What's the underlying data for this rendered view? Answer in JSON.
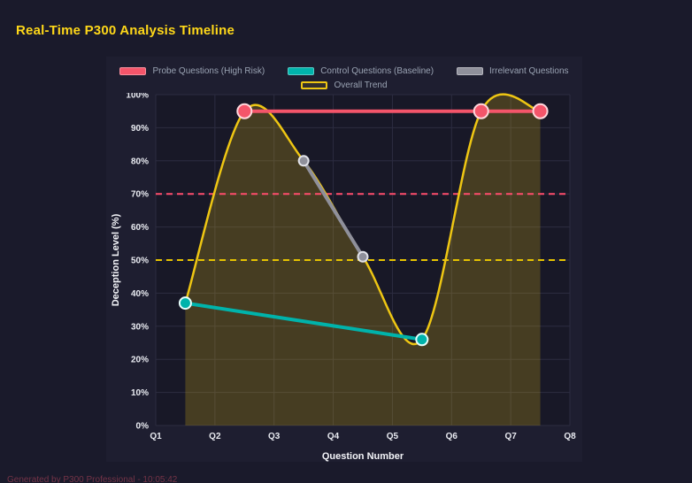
{
  "page": {
    "title": "Real-Time P300 Analysis Timeline",
    "footer": "Generated by P300 Professional - 10:05:42"
  },
  "chart_data": {
    "type": "line",
    "xlabel": "Question Number",
    "ylabel": "Deception Level (%)",
    "x_range": [
      1,
      8
    ],
    "x_ticks": [
      "Q1",
      "Q2",
      "Q3",
      "Q4",
      "Q5",
      "Q6",
      "Q7",
      "Q8"
    ],
    "ylim": [
      0,
      100
    ],
    "y_tick_step": 10,
    "y_ticks": [
      "0%",
      "10%",
      "20%",
      "30%",
      "40%",
      "50%",
      "60%",
      "70%",
      "80%",
      "90%",
      "100%"
    ],
    "grid": true,
    "legend_position": "top",
    "series": [
      {
        "name": "Probe Questions (High Risk)",
        "color": "#f4556a",
        "line_width": 4,
        "point_radius": 8,
        "point_border": "#ffd7dc",
        "legend_box": "solid",
        "x": [
          2.5,
          6.5,
          7.5
        ],
        "y": [
          95,
          95,
          95
        ]
      },
      {
        "name": "Control Questions (Baseline)",
        "color": "#00b3ab",
        "line_width": 4,
        "point_radius": 6.5,
        "point_border": "#e6fffc",
        "legend_box": "solid",
        "x": [
          1.5,
          5.5
        ],
        "y": [
          37,
          26
        ]
      },
      {
        "name": "Irrelevant Questions",
        "color": "#8f909b",
        "line_width": 4,
        "point_radius": 5.5,
        "point_border": "#e2e3ea",
        "legend_box": "solid",
        "x": [
          3.5,
          4.5
        ],
        "y": [
          80,
          51
        ]
      },
      {
        "name": "Overall Trend",
        "color": "#eec613",
        "line_width": 2.5,
        "point_radius": 0,
        "legend_box": "outline",
        "smooth": true,
        "fill": true,
        "fill_color": "rgba(238,198,19,0.22)",
        "x": [
          1.5,
          2.5,
          3.5,
          4.5,
          5.5,
          6.5,
          7.5
        ],
        "y": [
          37,
          95,
          80,
          51,
          26,
          95,
          95
        ]
      }
    ],
    "thresholds": [
      {
        "value": 70,
        "color": "#ff4d6d",
        "style": "dashed"
      },
      {
        "value": 50,
        "color": "#e6c300",
        "style": "dashed"
      }
    ]
  }
}
